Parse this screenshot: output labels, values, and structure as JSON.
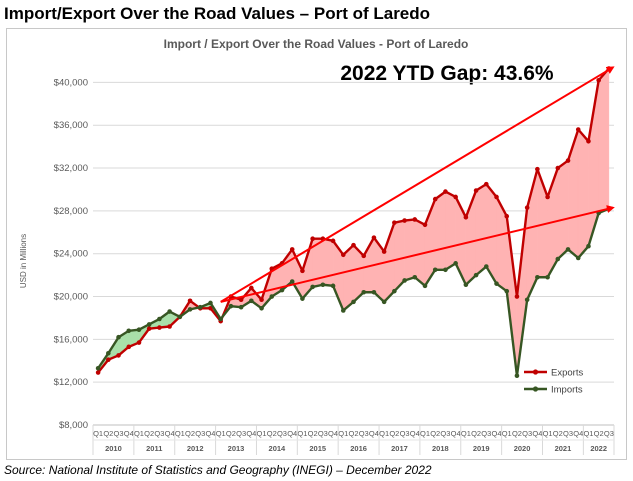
{
  "slide_title": "Import/Export Over the Road Values – Port of Laredo",
  "source_note": "Source: National Institute of Statistics and Geography (INEGI) – December 2022",
  "chart_data": {
    "type": "line",
    "title": "Import / Export Over the Road Values - Port of Laredo",
    "annotation": "2022 YTD Gap: 43.6%",
    "xlabel": "",
    "ylabel": "USD in Millions",
    "ylim": [
      8000,
      42000
    ],
    "yticks": [
      8000,
      12000,
      16000,
      20000,
      24000,
      28000,
      32000,
      36000,
      40000
    ],
    "ytick_labels": [
      "$8,000",
      "$12,000",
      "$16,000",
      "$20,000",
      "$24,000",
      "$28,000",
      "$32,000",
      "$36,000",
      "$40,000"
    ],
    "quarter_labels": [
      "Q1",
      "Q2",
      "Q3",
      "Q4"
    ],
    "years": [
      "2010",
      "2011",
      "2012",
      "2013",
      "2014",
      "2015",
      "2016",
      "2017",
      "2018",
      "2019",
      "2020",
      "2021",
      "2022"
    ],
    "year_quarters": [
      4,
      4,
      4,
      4,
      4,
      4,
      4,
      4,
      4,
      4,
      4,
      4,
      3
    ],
    "grid": true,
    "legend_position": "bottom-right",
    "colors": {
      "exports": "#c00000",
      "imports": "#375623",
      "gap_positive": "#ffb3b3",
      "gap_negative": "#a9dfa9",
      "trend": "#ff0000"
    },
    "series": [
      {
        "name": "Exports",
        "values": [
          12900,
          14100,
          14500,
          15300,
          15700,
          17000,
          17100,
          17200,
          18100,
          19600,
          18900,
          18900,
          17700,
          20000,
          19700,
          20800,
          19700,
          22600,
          23100,
          24400,
          22400,
          25400,
          25400,
          25200,
          23900,
          24800,
          23800,
          25500,
          24200,
          26900,
          27100,
          27200,
          26700,
          29100,
          29800,
          29300,
          27400,
          29900,
          30500,
          29300,
          27500,
          20000,
          28300,
          31900,
          29300,
          32000,
          32700,
          35600,
          34500,
          40200,
          41300
        ]
      },
      {
        "name": "Imports",
        "values": [
          13300,
          14700,
          16200,
          16800,
          16900,
          17400,
          17900,
          18600,
          18100,
          18800,
          19000,
          19400,
          17900,
          19100,
          19000,
          19600,
          18900,
          20000,
          20600,
          21400,
          19800,
          20900,
          21100,
          21000,
          18700,
          19500,
          20400,
          20400,
          19500,
          20500,
          21500,
          21800,
          21000,
          22500,
          22500,
          23100,
          21100,
          22000,
          22800,
          21200,
          20500,
          12600,
          19700,
          21800,
          21800,
          23500,
          24400,
          23600,
          24700,
          27800,
          28200
        ]
      }
    ],
    "trend_lines": [
      {
        "name": "Exports trend",
        "from": [
          12,
          19500
        ],
        "to": [
          50,
          41400
        ]
      },
      {
        "name": "Imports trend",
        "from": [
          12,
          19500
        ],
        "to": [
          50,
          28300
        ]
      }
    ]
  }
}
